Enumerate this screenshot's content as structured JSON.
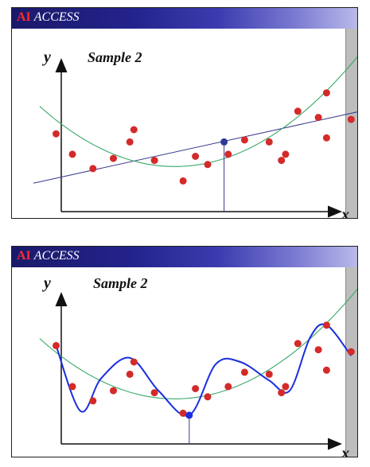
{
  "panels": [
    {
      "brand_ai": "AI",
      "brand_rest": "ACCESS",
      "title": "Sample 2",
      "xlabel": "x",
      "ylabel": "y"
    },
    {
      "brand_ai": "AI",
      "brand_rest": "ACCESS",
      "title": "Sample 2",
      "xlabel": "x",
      "ylabel": "y"
    }
  ],
  "colors": {
    "points": "#d42a2a",
    "highlight": "#2a3a9a",
    "linear_fit": "#3a3a8f",
    "quadratic_fit": "#3aa868",
    "overfit_curve": "#1a2ee0",
    "axes": "#111111"
  },
  "chart_data": [
    {
      "type": "scatter",
      "title": "Sample 2",
      "xlabel": "x",
      "ylabel": "y",
      "points": [
        [
          0.3,
          5.8
        ],
        [
          0.7,
          4.8
        ],
        [
          1.2,
          4.1
        ],
        [
          1.7,
          4.6
        ],
        [
          2.1,
          5.4
        ],
        [
          2.2,
          6.0
        ],
        [
          2.7,
          4.5
        ],
        [
          3.4,
          3.5
        ],
        [
          3.7,
          4.7
        ],
        [
          4.0,
          4.3
        ],
        [
          4.5,
          4.8
        ],
        [
          4.9,
          5.5
        ],
        [
          5.5,
          5.4
        ],
        [
          5.8,
          4.5
        ],
        [
          5.9,
          4.8
        ],
        [
          6.2,
          6.9
        ],
        [
          6.7,
          6.6
        ],
        [
          6.9,
          7.8
        ],
        [
          6.9,
          5.6
        ],
        [
          7.5,
          6.5
        ]
      ],
      "highlight_point": [
        4.4,
        5.4
      ],
      "series": [
        {
          "kind": "linear_fit",
          "slope": 0.44,
          "intercept": 3.5
        },
        {
          "kind": "quadratic_fit",
          "a": 0.27,
          "vertex_x": 3.2,
          "vertex_y": 4.2
        }
      ],
      "xlim": [
        0,
        8
      ],
      "ylim": [
        2,
        10
      ]
    },
    {
      "type": "scatter",
      "title": "Sample 2",
      "xlabel": "x",
      "ylabel": "y",
      "points": [
        [
          0.3,
          6.8
        ],
        [
          0.7,
          4.8
        ],
        [
          1.2,
          4.1
        ],
        [
          1.7,
          4.6
        ],
        [
          2.1,
          5.4
        ],
        [
          2.2,
          6.0
        ],
        [
          2.7,
          4.5
        ],
        [
          3.4,
          3.5
        ],
        [
          3.7,
          4.7
        ],
        [
          4.0,
          4.3
        ],
        [
          4.5,
          4.8
        ],
        [
          4.9,
          5.5
        ],
        [
          5.5,
          5.4
        ],
        [
          5.8,
          4.5
        ],
        [
          5.9,
          4.8
        ],
        [
          6.2,
          6.9
        ],
        [
          6.7,
          6.6
        ],
        [
          6.9,
          7.8
        ],
        [
          6.9,
          5.6
        ],
        [
          7.5,
          6.5
        ]
      ],
      "highlight_point": [
        3.55,
        3.4
      ],
      "series": [
        {
          "kind": "quadratic_fit",
          "a": 0.27,
          "vertex_x": 3.2,
          "vertex_y": 4.2
        },
        {
          "kind": "overfit_curve"
        }
      ],
      "xlim": [
        0,
        8
      ],
      "ylim": [
        2,
        10
      ]
    }
  ]
}
